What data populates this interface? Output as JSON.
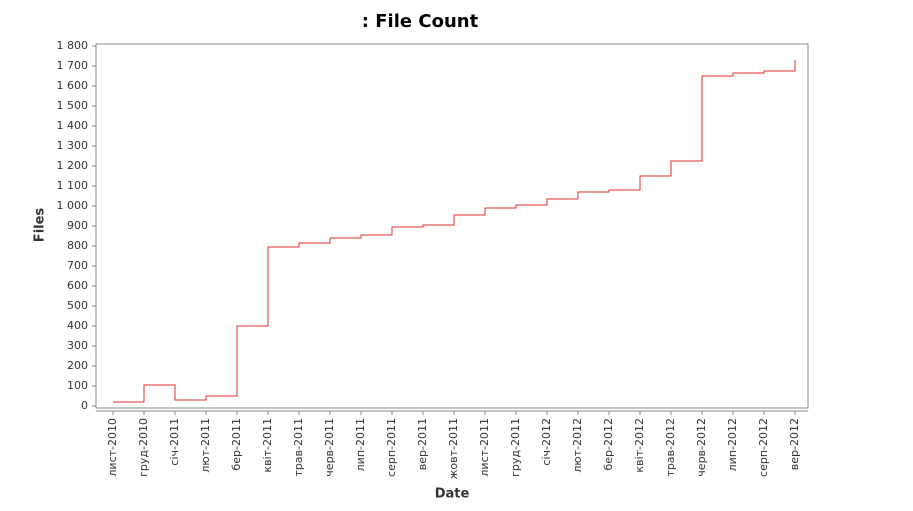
{
  "chart_data": {
    "type": "line",
    "title": ": File Count",
    "x_label": "Date",
    "y_label": "Files",
    "categories": [
      "лист-2010",
      "груд-2010",
      "січ-2011",
      "лют-2011",
      "бер-2011",
      "квіт-2011",
      "трав-2011",
      "черв-2011",
      "лип-2011",
      "серп-2011",
      "вер-2011",
      "жовт-2011",
      "лист-2011",
      "груд-2011",
      "січ-2012",
      "лют-2012",
      "бер-2012",
      "квіт-2012",
      "трав-2012",
      "черв-2012",
      "лип-2012",
      "серп-2012",
      "вер-2012"
    ],
    "series": [
      {
        "name": "Files",
        "color": "#e03030",
        "values": [
          20,
          105,
          30,
          50,
          400,
          795,
          815,
          840,
          855,
          895,
          905,
          955,
          990,
          1005,
          1035,
          1070,
          1080,
          1150,
          1225,
          1650,
          1665,
          1675,
          1730
        ]
      }
    ],
    "ylim": [
      0,
      1800
    ],
    "yticks": [
      0,
      100,
      200,
      300,
      400,
      500,
      600,
      700,
      800,
      900,
      {
        "value": 1000,
        "label": "1 000"
      },
      {
        "value": 1100,
        "label": "1 100"
      },
      {
        "value": 1200,
        "label": "1 200"
      },
      {
        "value": 1300,
        "label": "1 300"
      },
      {
        "value": 1400,
        "label": "1 400"
      },
      {
        "value": 1500,
        "label": "1 500"
      },
      {
        "value": 1600,
        "label": "1 600"
      },
      {
        "value": 1700,
        "label": "1 700"
      },
      {
        "value": 1800,
        "label": "1 800"
      }
    ]
  }
}
